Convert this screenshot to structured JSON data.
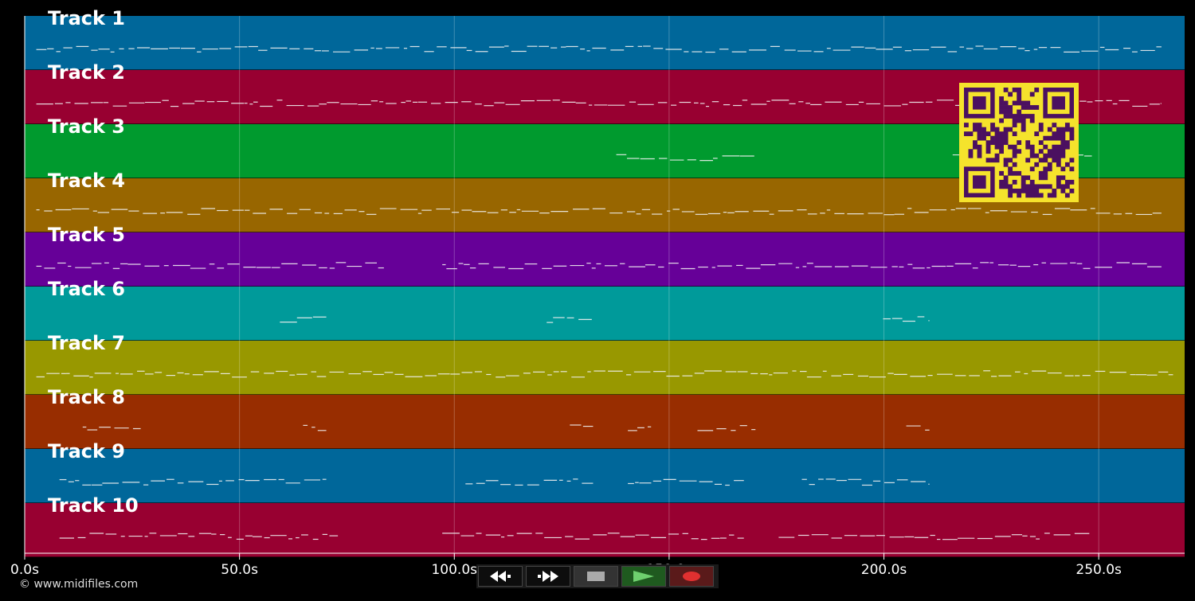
{
  "tracks": [
    {
      "label": "Track 1",
      "color": "#00679a"
    },
    {
      "label": "Track 2",
      "color": "#980031"
    },
    {
      "label": "Track 3",
      "color": "#009a2e"
    },
    {
      "label": "Track 4",
      "color": "#986600"
    },
    {
      "label": "Track 5",
      "color": "#660098"
    },
    {
      "label": "Track 6",
      "color": "#009a9a"
    },
    {
      "label": "Track 7",
      "color": "#989800"
    },
    {
      "label": "Track 8",
      "color": "#982d00"
    },
    {
      "label": "Track 9",
      "color": "#00679a"
    },
    {
      "label": "Track 10",
      "color": "#980031"
    }
  ],
  "timeline": {
    "range_seconds": [
      0,
      270
    ],
    "ticks": [
      {
        "value": 0,
        "label": "0.0s"
      },
      {
        "value": 50,
        "label": "50.0s"
      },
      {
        "value": 100,
        "label": "100.0s"
      },
      {
        "value": 150,
        "label": "150.0s"
      },
      {
        "value": 200,
        "label": "200.0s"
      },
      {
        "value": 250,
        "label": "250.0s"
      }
    ]
  },
  "footer": {
    "copyright": "© www.midifiles.com"
  },
  "transport": {
    "buttons": [
      {
        "name": "rewind-button",
        "icon": "rewind-icon"
      },
      {
        "name": "fast-forward-button",
        "icon": "fast-forward-icon"
      },
      {
        "name": "stop-button",
        "icon": "stop-icon"
      },
      {
        "name": "play-button",
        "icon": "play-icon"
      },
      {
        "name": "record-button",
        "icon": "record-icon"
      }
    ]
  },
  "qr_code": {
    "fg": "#4b1060",
    "bg": "#f5e32c"
  }
}
